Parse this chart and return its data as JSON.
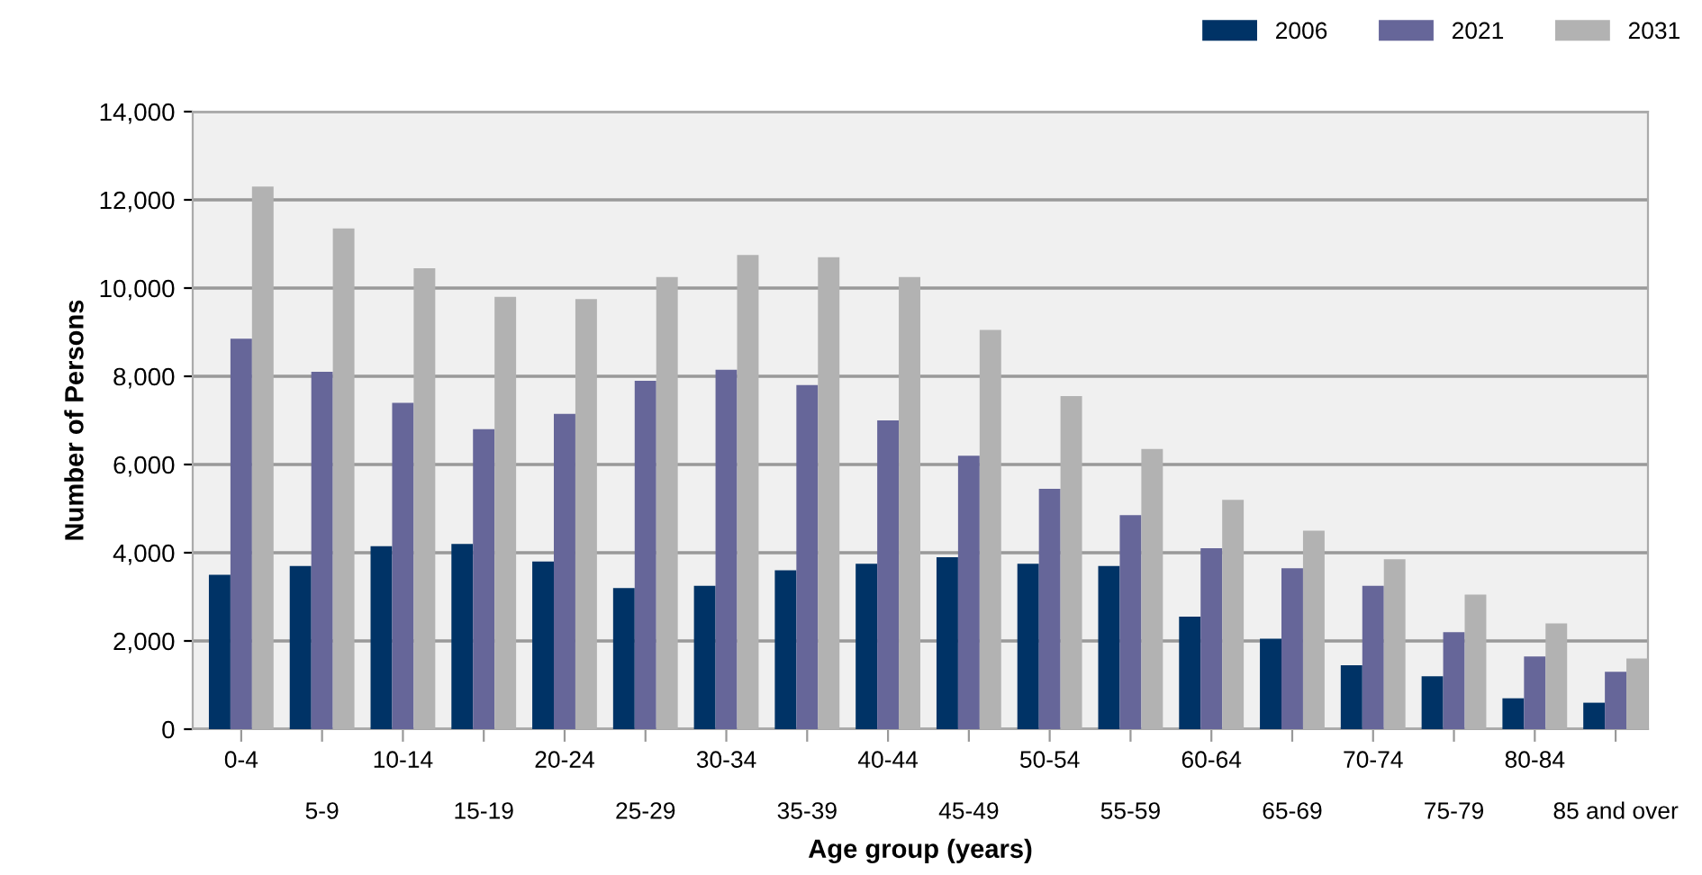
{
  "chart_data": {
    "type": "bar",
    "xlabel": "Age group (years)",
    "ylabel": "Number of Persons",
    "categories": [
      "0-4",
      "5-9",
      "10-14",
      "15-19",
      "20-24",
      "25-29",
      "30-34",
      "35-39",
      "40-44",
      "45-49",
      "50-54",
      "55-59",
      "60-64",
      "65-69",
      "70-74",
      "75-79",
      "80-84",
      "85 and over"
    ],
    "series": [
      {
        "name": "2006",
        "color": "#003366",
        "values": [
          3500,
          3700,
          4150,
          4200,
          3800,
          3200,
          3250,
          3600,
          3750,
          3900,
          3750,
          3700,
          2550,
          2050,
          1450,
          1200,
          700,
          600
        ]
      },
      {
        "name": "2021",
        "color": "#666699",
        "values": [
          8850,
          8100,
          7400,
          6800,
          7150,
          7900,
          8150,
          7800,
          7000,
          6200,
          5450,
          4850,
          4100,
          3650,
          3250,
          2200,
          1650,
          1300
        ]
      },
      {
        "name": "2031",
        "color": "#b2b2b2",
        "values": [
          12300,
          11350,
          10450,
          9800,
          9750,
          10250,
          10750,
          10700,
          10250,
          9050,
          7550,
          6350,
          5200,
          4500,
          3850,
          3050,
          2400,
          1600
        ]
      }
    ],
    "ylim": [
      0,
      14000
    ],
    "yticks": [
      {
        "value": 0,
        "label": "0"
      },
      {
        "value": 2000,
        "label": "2,000"
      },
      {
        "value": 4000,
        "label": "4,000"
      },
      {
        "value": 6000,
        "label": "6,000"
      },
      {
        "value": 8000,
        "label": "8,000"
      },
      {
        "value": 10000,
        "label": "10,000"
      },
      {
        "value": 12000,
        "label": "12,000"
      },
      {
        "value": 14000,
        "label": "14,000"
      }
    ],
    "grid": "y",
    "legend": "top right"
  }
}
